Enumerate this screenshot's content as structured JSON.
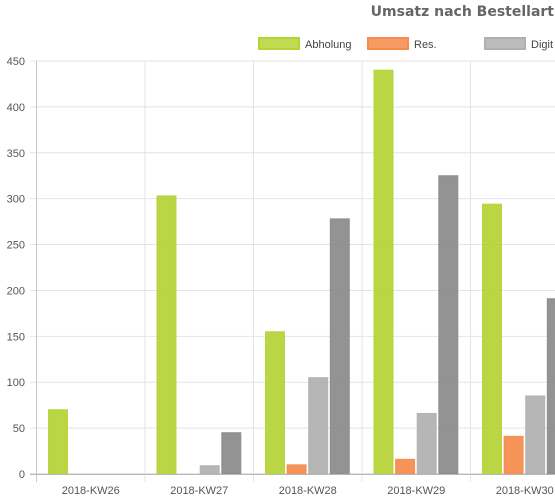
{
  "chart_data": {
    "type": "bar",
    "title": "Umsatz nach Bestellart",
    "categories": [
      "2018-KW26",
      "2018-KW27",
      "2018-KW28",
      "2018-KW29",
      "2018-KW30"
    ],
    "ylim": [
      0,
      450
    ],
    "ytick_step": 50,
    "grid": true,
    "legend_position": "top",
    "series": [
      {
        "name": "Abholung",
        "color": "#b5d335",
        "values": [
          70,
          303,
          155,
          440,
          294
        ]
      },
      {
        "name": "Res.",
        "color": "#f58a4b",
        "values": [
          0,
          0,
          10,
          16,
          41
        ]
      },
      {
        "name": "Digit",
        "color": "#b0b0b0",
        "values": [
          0,
          9,
          105,
          66,
          85
        ]
      },
      {
        "name": "",
        "color": "#8a8a8a",
        "values": [
          0,
          45,
          278,
          325,
          191
        ]
      }
    ]
  }
}
